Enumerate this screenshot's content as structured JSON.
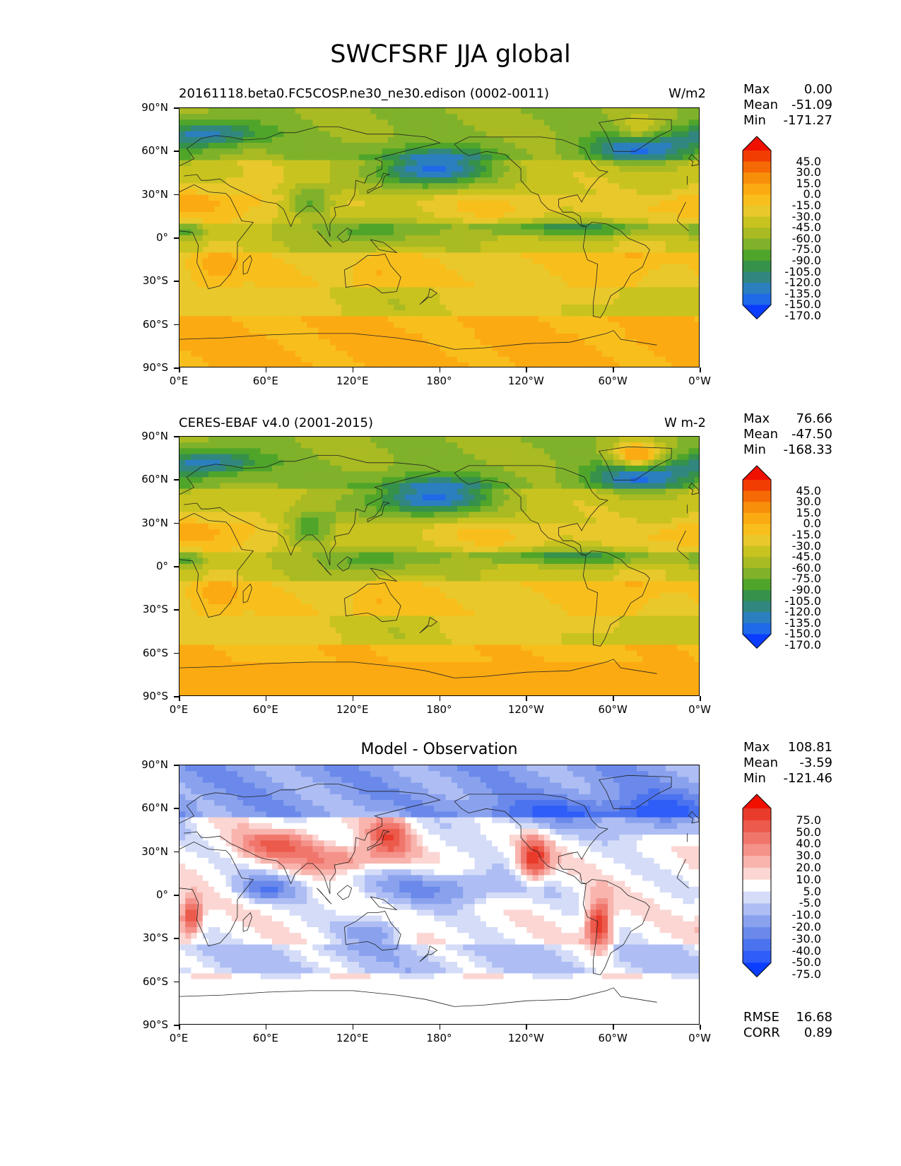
{
  "title": "SWCFSRF JJA global",
  "axes": {
    "y_ticks": [
      "90°N",
      "60°N",
      "30°N",
      "0°",
      "30°S",
      "60°S",
      "90°S"
    ],
    "x_ticks": [
      "0°E",
      "60°E",
      "120°E",
      "180°",
      "120°W",
      "60°W",
      "0°W"
    ]
  },
  "colors": {
    "main_scale": [
      "#0a3dff",
      "#1f6ae8",
      "#2b7fbf",
      "#31877f",
      "#36914a",
      "#4fa52a",
      "#7fb22a",
      "#a9ba22",
      "#c8c31f",
      "#e8c82b",
      "#f8bf1c",
      "#fcaa12",
      "#f88f0a",
      "#f56a05",
      "#f23d02",
      "#f01000"
    ],
    "diff_scale": [
      "#0a3dff",
      "#2e5df7",
      "#4b73ef",
      "#6a89ea",
      "#8aa2ee",
      "#aebef4",
      "#d4dcf8",
      "#ffffff",
      "#fbd6d3",
      "#f8b4ad",
      "#f4928a",
      "#f0766c",
      "#ec5a4c",
      "#e83b2c",
      "#f01000"
    ]
  },
  "panels": [
    {
      "title_left": "20161118.beta0.FC5COSP.ne30_ne30.edison (0002-0011)",
      "title_right": "W/m2",
      "stats": {
        "max_label": "Max",
        "max": "0.00",
        "mean_label": "Mean",
        "mean": "-51.09",
        "min_label": "Min",
        "min": "-171.27"
      },
      "colorbar_labels": [
        "45.0",
        "30.0",
        "15.0",
        "0.0",
        "-15.0",
        "-30.0",
        "-45.0",
        "-60.0",
        "-75.0",
        "-90.0",
        "-105.0",
        "-120.0",
        "-135.0",
        "-150.0",
        "-170.0"
      ]
    },
    {
      "title_left": "CERES-EBAF v4.0 (2001-2015)",
      "title_right": "W m-2",
      "stats": {
        "max_label": "Max",
        "max": "76.66",
        "mean_label": "Mean",
        "mean": "-47.50",
        "min_label": "Min",
        "min": "-168.33"
      },
      "colorbar_labels": [
        "45.0",
        "30.0",
        "15.0",
        "0.0",
        "-15.0",
        "-30.0",
        "-45.0",
        "-60.0",
        "-75.0",
        "-90.0",
        "-105.0",
        "-120.0",
        "-135.0",
        "-150.0",
        "-170.0"
      ]
    },
    {
      "title_center": "Model - Observation",
      "stats": {
        "max_label": "Max",
        "max": "108.81",
        "mean_label": "Mean",
        "mean": "-3.59",
        "min_label": "Min",
        "min": "-121.46"
      },
      "colorbar_labels": [
        "75.0",
        "50.0",
        "40.0",
        "30.0",
        "20.0",
        "10.0",
        "5.0",
        "-5.0",
        "-10.0",
        "-20.0",
        "-30.0",
        "-40.0",
        "-50.0",
        "-75.0"
      ],
      "rmse_label": "RMSE",
      "rmse": "16.68",
      "corr_label": "CORR",
      "corr": "0.89"
    }
  ],
  "chart_data": [
    {
      "type": "heatmap",
      "title": "20161118.beta0.FC5COSP.ne30_ne30.edison (0002-0011)",
      "units": "W/m2",
      "xlim": [
        0,
        360
      ],
      "ylim": [
        -90,
        90
      ],
      "levels": [
        -170,
        -150,
        -135,
        -120,
        -105,
        -90,
        -75,
        -60,
        -45,
        -30,
        -15,
        0,
        15,
        30,
        45
      ],
      "max": 0.0,
      "mean": -51.09,
      "min": -171.27
    },
    {
      "type": "heatmap",
      "title": "CERES-EBAF v4.0 (2001-2015)",
      "units": "W m-2",
      "xlim": [
        0,
        360
      ],
      "ylim": [
        -90,
        90
      ],
      "levels": [
        -170,
        -150,
        -135,
        -120,
        -105,
        -90,
        -75,
        -60,
        -45,
        -30,
        -15,
        0,
        15,
        30,
        45
      ],
      "max": 76.66,
      "mean": -47.5,
      "min": -168.33
    },
    {
      "type": "heatmap",
      "title": "Model - Observation",
      "xlim": [
        0,
        360
      ],
      "ylim": [
        -90,
        90
      ],
      "levels": [
        -75,
        -50,
        -40,
        -30,
        -20,
        -10,
        -5,
        5,
        10,
        20,
        30,
        40,
        50,
        75
      ],
      "max": 108.81,
      "mean": -3.59,
      "min": -121.46,
      "rmse": 16.68,
      "corr": 0.89
    }
  ]
}
